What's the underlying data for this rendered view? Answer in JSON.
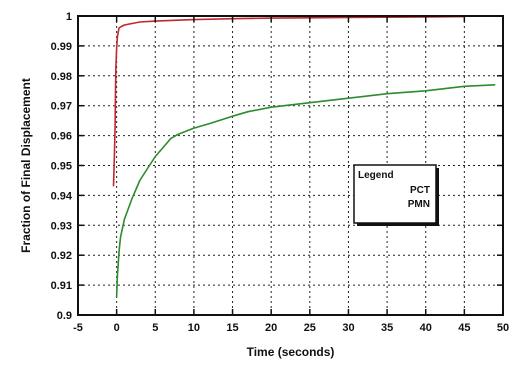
{
  "chart_data": {
    "type": "line",
    "title": "",
    "xlabel": "Time (seconds)",
    "ylabel": "Fraction of Final Displacement",
    "xlim": [
      -5,
      50
    ],
    "ylim": [
      0.9,
      1.0
    ],
    "xticks": [
      -5,
      0,
      5,
      10,
      15,
      20,
      25,
      30,
      35,
      40,
      45,
      50
    ],
    "xtick_labels": [
      "-5",
      "0",
      "5",
      "10",
      "15",
      "20",
      "25",
      "30",
      "35",
      "40",
      "45",
      "50"
    ],
    "yticks": [
      0.9,
      0.91,
      0.92,
      0.93,
      0.94,
      0.95,
      0.96,
      0.97,
      0.98,
      0.99,
      1.0
    ],
    "ytick_labels": [
      "0.9",
      "0.91",
      "0.92",
      "0.93",
      "0.94",
      "0.95",
      "0.96",
      "0.97",
      "0.98",
      "0.99",
      "1"
    ],
    "grid": true,
    "legend": {
      "title": "Legend",
      "position": "center-right",
      "entries": [
        "PCT",
        "PMN"
      ]
    },
    "series": [
      {
        "name": "PCT",
        "color": "#c0282d",
        "x": [
          -0.4,
          -0.3,
          -0.2,
          -0.15,
          -0.1,
          0.0,
          0.1,
          0.3,
          0.6,
          1.0,
          2,
          3,
          5,
          10,
          15,
          20,
          25,
          30,
          35,
          40,
          45
        ],
        "y": [
          0.943,
          0.952,
          0.963,
          0.975,
          0.983,
          0.989,
          0.993,
          0.996,
          0.9965,
          0.997,
          0.9975,
          0.998,
          0.9983,
          0.9988,
          0.9991,
          0.9993,
          0.9994,
          0.9995,
          0.9996,
          0.9997,
          0.9998
        ]
      },
      {
        "name": "PMN",
        "color": "#2e8b2e",
        "x": [
          0.0,
          0.1,
          0.3,
          0.5,
          1,
          2,
          3,
          4,
          5,
          6,
          7,
          8,
          10,
          12,
          15,
          17,
          20,
          25,
          30,
          35,
          40,
          45,
          49
        ],
        "y": [
          0.906,
          0.913,
          0.921,
          0.926,
          0.932,
          0.939,
          0.945,
          0.949,
          0.953,
          0.956,
          0.959,
          0.9605,
          0.9625,
          0.964,
          0.9665,
          0.968,
          0.9695,
          0.971,
          0.9725,
          0.974,
          0.975,
          0.9765,
          0.977
        ]
      }
    ]
  }
}
